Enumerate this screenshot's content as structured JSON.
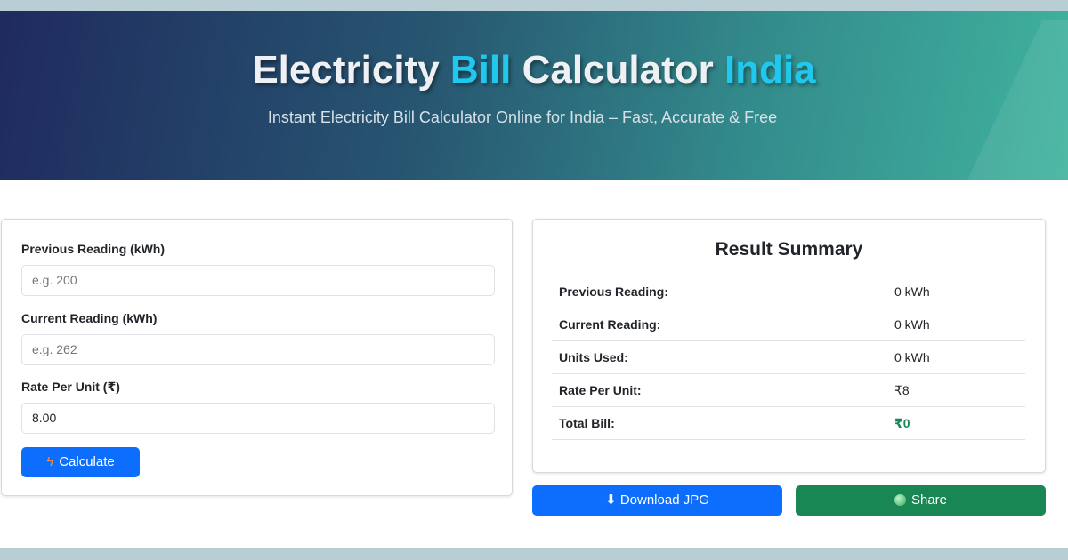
{
  "header": {
    "title_parts": [
      "Electricity ",
      "Bill",
      " Calculator ",
      "India"
    ],
    "subtitle": "Instant Electricity Bill Calculator Online for India – Fast, Accurate & Free"
  },
  "form": {
    "previous": {
      "label": "Previous Reading (kWh)",
      "placeholder": "e.g. 200",
      "value": ""
    },
    "current": {
      "label": "Current Reading (kWh)",
      "placeholder": "e.g. 262",
      "value": ""
    },
    "rate": {
      "label": "Rate Per Unit (₹)",
      "value": "8.00"
    },
    "calculate_label": "Calculate",
    "calculate_icon": "lightning-icon"
  },
  "result": {
    "title": "Result Summary",
    "rows": [
      {
        "label": "Previous Reading:",
        "value": "0 kWh"
      },
      {
        "label": "Current Reading:",
        "value": "0 kWh"
      },
      {
        "label": "Units Used:",
        "value": "0 kWh"
      },
      {
        "label": "Rate Per Unit:",
        "value": "₹8"
      },
      {
        "label": "Total Bill:",
        "value": "₹0"
      }
    ]
  },
  "actions": {
    "download_label": "⬇ Download JPG",
    "share_label": "Share",
    "share_icon": "globe-icon"
  },
  "colors": {
    "primary": "#0d6efd",
    "success": "#198754",
    "highlight": "#1fc8ec"
  }
}
